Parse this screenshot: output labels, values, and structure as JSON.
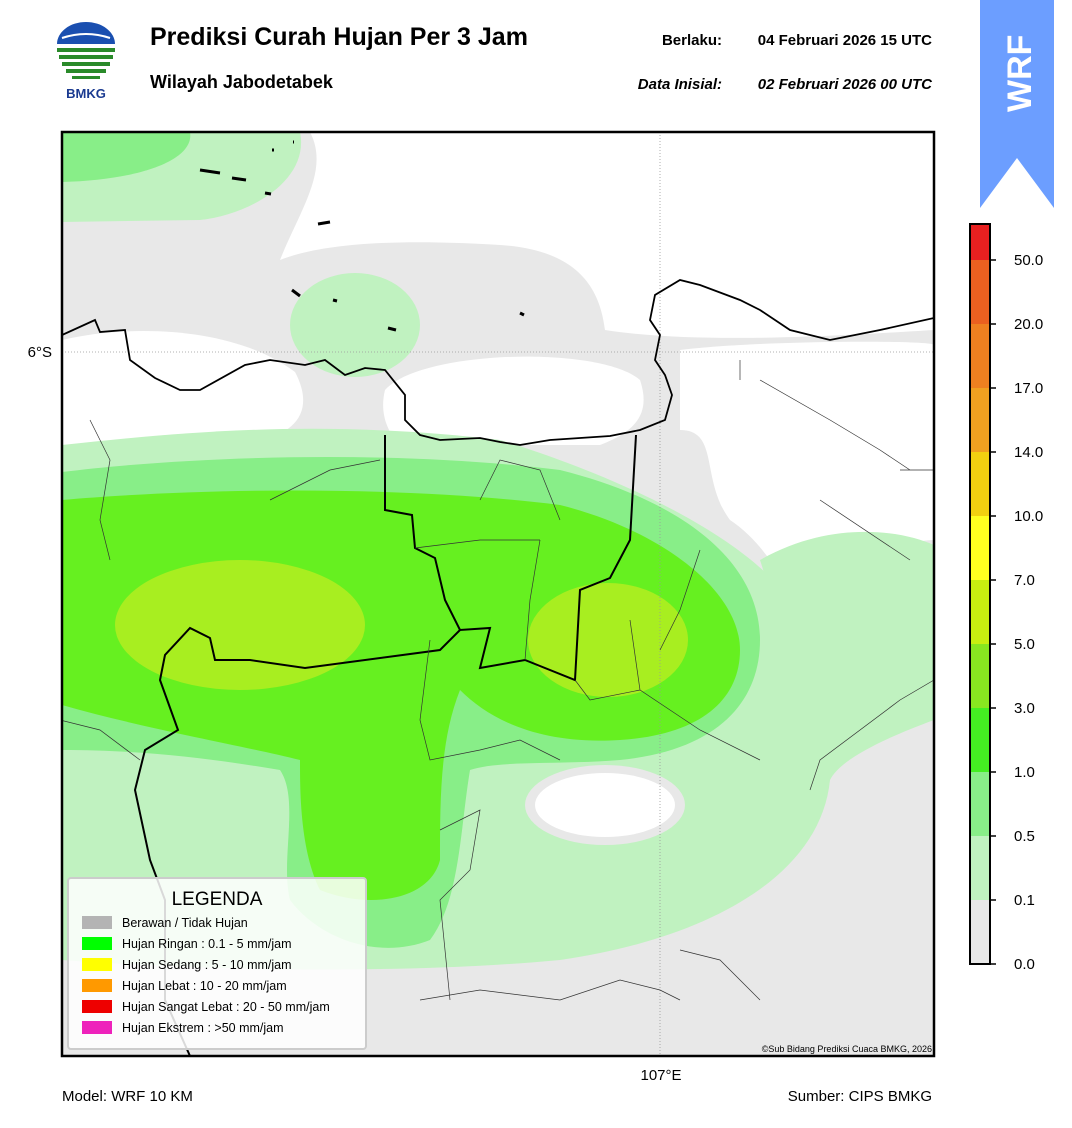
{
  "header": {
    "logo_text": "BMKG",
    "title": "Prediksi Curah Hujan Per 3 Jam",
    "subtitle": "Wilayah Jabodetabek",
    "valid_label": "Berlaku:",
    "valid_time": "04 Februari 2026 15 UTC",
    "init_label": "Data Inisial:",
    "init_time": "02 Februari 2026 00 UTC"
  },
  "banner": "WRF",
  "map": {
    "lat_label": "6°S",
    "lon_label": "107°E",
    "credit": "©Sub Bidang Prediksi Cuaca BMKG, 2026"
  },
  "legend": {
    "title": "LEGENDA",
    "items": [
      {
        "label": "Berawan / Tidak Hujan",
        "color": "#b4b4b4"
      },
      {
        "label": "Hujan Ringan : 0.1 - 5 mm/jam",
        "color": "#00ff00"
      },
      {
        "label": "Hujan Sedang : 5 - 10 mm/jam",
        "color": "#ffff00"
      },
      {
        "label": "Hujan Lebat : 10 - 20 mm/jam",
        "color": "#ff9900"
      },
      {
        "label": "Hujan Sangat Lebat : 20 - 50 mm/jam",
        "color": "#ee0000"
      },
      {
        "label": "Hujan Ekstrem : >50 mm/jam",
        "color": "#ee22bb"
      }
    ]
  },
  "colorbar": {
    "ticks": [
      "0.0",
      "0.1",
      "0.5",
      "1.0",
      "3.0",
      "5.0",
      "7.0",
      "10.0",
      "14.0",
      "17.0",
      "20.0",
      "50.0"
    ],
    "colors": [
      "#e8e8e8",
      "#c0f2c0",
      "#88ee88",
      "#44ee22",
      "#88e620",
      "#c8ee10",
      "#ffff20",
      "#f2d010",
      "#f0a020",
      "#ee8020",
      "#ea6020",
      "#e82020",
      "#e020c0"
    ]
  },
  "footer": {
    "model": "Model: WRF 10 KM",
    "source": "Sumber: CIPS BMKG"
  }
}
